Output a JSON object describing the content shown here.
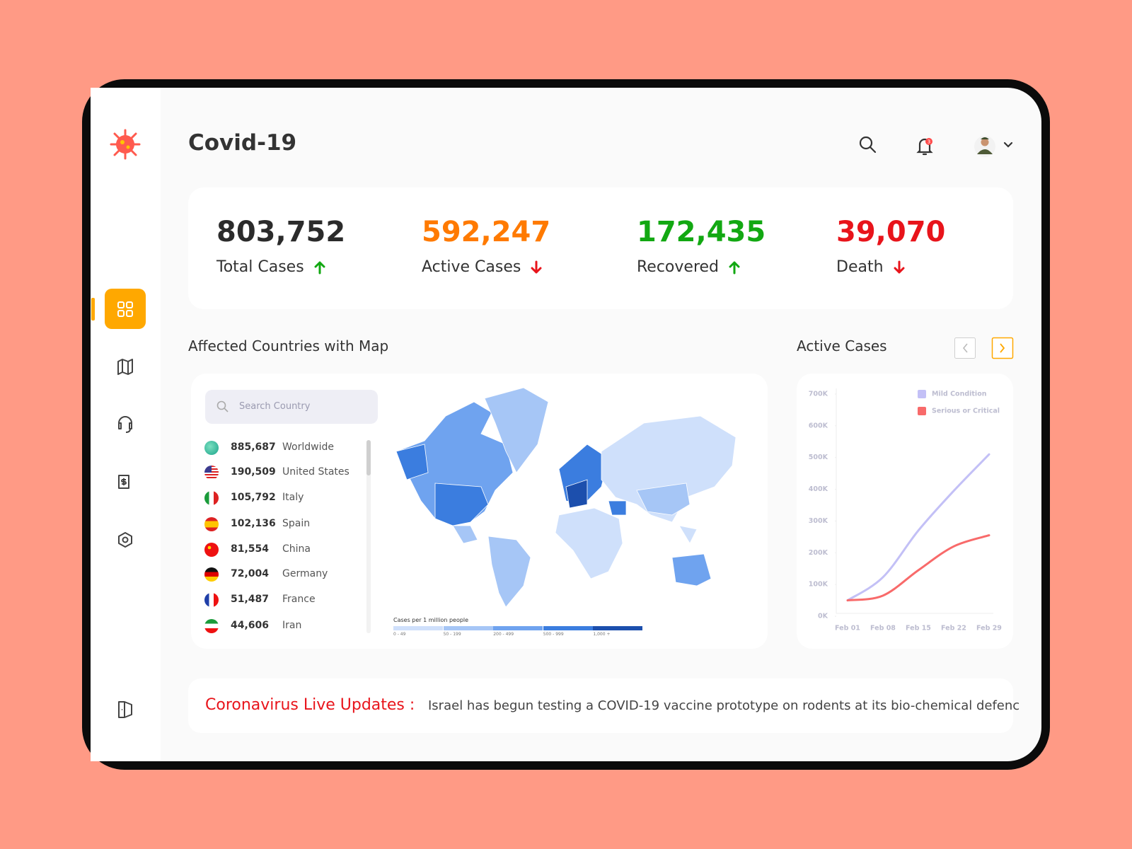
{
  "header": {
    "title": "Covid-19",
    "notification_count": "3"
  },
  "stats": [
    {
      "value": "803,752",
      "label": "Total Cases",
      "trend": "up",
      "color": "#2b2b2b"
    },
    {
      "value": "592,247",
      "label": "Active Cases",
      "trend": "down",
      "color": "#ff7a00"
    },
    {
      "value": "172,435",
      "label": "Recovered",
      "trend": "up",
      "color": "#12a812"
    },
    {
      "value": "39,070",
      "label": "Death",
      "trend": "down",
      "color": "#e8141b"
    }
  ],
  "map_section": {
    "title": "Affected Countries with Map",
    "search_placeholder": "Search Country",
    "countries": [
      {
        "count": "885,687",
        "name": "Worldwide"
      },
      {
        "count": "190,509",
        "name": "United States"
      },
      {
        "count": "105,792",
        "name": "Italy"
      },
      {
        "count": "102,136",
        "name": "Spain"
      },
      {
        "count": "81,554",
        "name": "China"
      },
      {
        "count": "72,004",
        "name": "Germany"
      },
      {
        "count": "51,487",
        "name": "France"
      },
      {
        "count": "44,606",
        "name": "Iran"
      }
    ],
    "legend": {
      "title": "Cases per 1 million people",
      "items": [
        {
          "label": "0 - 49",
          "color": "#cfe0fb"
        },
        {
          "label": "50 - 199",
          "color": "#a6c6f6"
        },
        {
          "label": "200 - 499",
          "color": "#6fa3ef"
        },
        {
          "label": "500 - 999",
          "color": "#3b7ddf"
        },
        {
          "label": "1,000 +",
          "color": "#1c4fad"
        }
      ]
    }
  },
  "chart_data": {
    "type": "line",
    "title": "Active Cases",
    "categories": [
      "Feb 01",
      "Feb 08",
      "Feb 15",
      "Feb 22",
      "Feb 29"
    ],
    "series": [
      {
        "name": "Mild Condition",
        "color": "#c3c0f6",
        "values": [
          50000,
          123000,
          270000,
          395000,
          510000
        ]
      },
      {
        "name": "Serious or Critical",
        "color": "#f86a6a",
        "values": [
          50000,
          65000,
          145000,
          220000,
          255000
        ]
      }
    ],
    "ylim": [
      0,
      700000
    ],
    "yticks": [
      {
        "value": 0,
        "label": "0K"
      },
      {
        "value": 100000,
        "label": "100K"
      },
      {
        "value": 200000,
        "label": "200K"
      },
      {
        "value": 300000,
        "label": "300K"
      },
      {
        "value": 400000,
        "label": "400K"
      },
      {
        "value": 500000,
        "label": "500K"
      },
      {
        "value": 600000,
        "label": "600K"
      },
      {
        "value": 700000,
        "label": "700K"
      }
    ]
  },
  "news": {
    "label": "Coronavirus Live Updates :",
    "text": "Israel has begun testing a COVID-19 vaccine prototype on rodents at its bio-chemical defenc"
  }
}
